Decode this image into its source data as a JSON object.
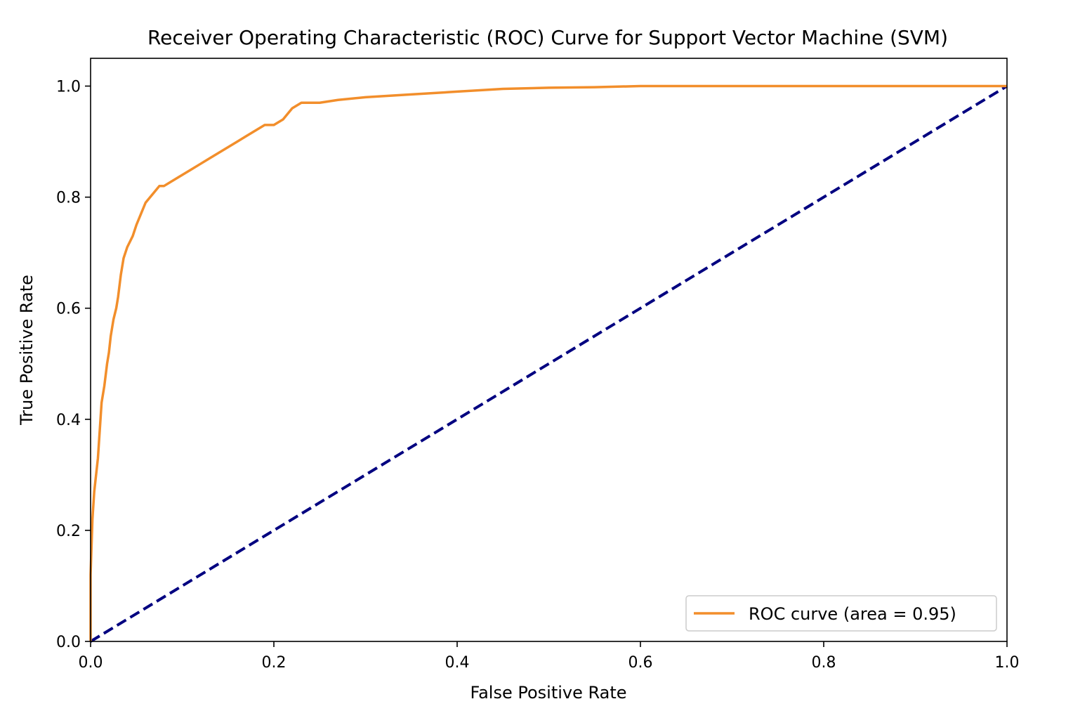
{
  "chart_data": {
    "type": "line",
    "title": "Receiver Operating Characteristic (ROC) Curve for Support Vector Machine (SVM)",
    "xlabel": "False Positive Rate",
    "ylabel": "True Positive Rate",
    "xlim": [
      0.0,
      1.0
    ],
    "ylim": [
      0.0,
      1.05
    ],
    "x_ticks": [
      "0.0",
      "0.2",
      "0.4",
      "0.6",
      "0.8",
      "1.0"
    ],
    "y_ticks": [
      "0.0",
      "0.2",
      "0.4",
      "0.6",
      "0.8",
      "1.0"
    ],
    "grid": false,
    "legend_position": "lower-right",
    "series": [
      {
        "name": "ROC curve (area = 0.95)",
        "color": "#f28e2b",
        "style": "solid",
        "x": [
          0.0,
          0.0,
          0.002,
          0.004,
          0.006,
          0.008,
          0.01,
          0.012,
          0.015,
          0.018,
          0.02,
          0.022,
          0.025,
          0.028,
          0.03,
          0.033,
          0.036,
          0.04,
          0.043,
          0.046,
          0.05,
          0.055,
          0.06,
          0.065,
          0.07,
          0.075,
          0.08,
          0.09,
          0.1,
          0.11,
          0.12,
          0.13,
          0.14,
          0.15,
          0.16,
          0.17,
          0.18,
          0.19,
          0.2,
          0.21,
          0.22,
          0.23,
          0.25,
          0.27,
          0.3,
          0.35,
          0.4,
          0.45,
          0.5,
          0.55,
          0.6,
          1.0
        ],
        "y": [
          0.0,
          0.12,
          0.22,
          0.27,
          0.3,
          0.33,
          0.38,
          0.43,
          0.46,
          0.5,
          0.52,
          0.55,
          0.58,
          0.6,
          0.62,
          0.66,
          0.69,
          0.71,
          0.72,
          0.73,
          0.75,
          0.77,
          0.79,
          0.8,
          0.81,
          0.82,
          0.82,
          0.83,
          0.84,
          0.85,
          0.86,
          0.87,
          0.88,
          0.89,
          0.9,
          0.91,
          0.92,
          0.93,
          0.93,
          0.94,
          0.96,
          0.97,
          0.97,
          0.975,
          0.98,
          0.985,
          0.99,
          0.995,
          0.997,
          0.998,
          1.0,
          1.0
        ]
      },
      {
        "name": "",
        "color": "#000080",
        "style": "dashed",
        "x": [
          0.0,
          1.0
        ],
        "y": [
          0.0,
          1.0
        ]
      }
    ]
  }
}
